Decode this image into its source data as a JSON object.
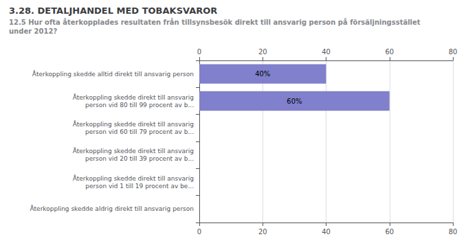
{
  "chart_data": {
    "type": "bar",
    "orientation": "horizontal",
    "title": "3.28. DETALJHANDEL MED TOBAKSVAROR",
    "subtitle": "12.5 Hur ofta återkopplades resultaten från tillsynsbesök direkt till ansvarig person på försäljningsstället\nunder 2012?",
    "categories": [
      "Återkoppling skedde alltid direkt till ansvarig person",
      "Återkoppling skedde direkt till ansvarig\nperson vid 80 till 99 procent av b...",
      "Återkoppling skedde direkt till ansvarig\nperson vid 60 till 79 procent av b...",
      "Återkoppling skedde direkt till ansvarig\nperson vid 20 till 39 procent av b...",
      "Återkoppling skedde direkt till ansvarig\nperson vid 1 till 19 procent av be...",
      "Återkoppling skedde aldrig direkt till ansvarig person"
    ],
    "values": [
      40,
      60,
      0,
      0,
      0,
      0
    ],
    "value_labels": [
      "40%",
      "60%",
      null,
      null,
      null,
      null
    ],
    "data_labels": true,
    "color": "#8080cc",
    "xlim": [
      0,
      80
    ],
    "xticks": [
      0,
      20,
      40,
      60,
      80
    ],
    "grid": true
  }
}
